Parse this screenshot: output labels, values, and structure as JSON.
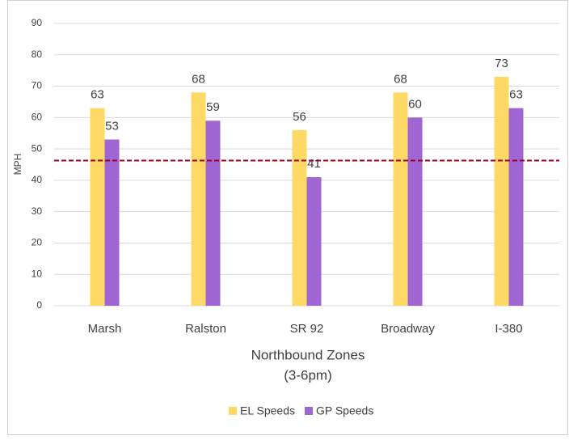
{
  "chart_data": {
    "type": "bar",
    "categories": [
      "Marsh",
      "Ralston",
      "SR 92",
      "Broadway",
      "I-380"
    ],
    "series": [
      {
        "name": "EL Speeds",
        "color": "#ffd966",
        "values": [
          63,
          68,
          56,
          68,
          73
        ]
      },
      {
        "name": "GP Speeds",
        "color": "#a066d3",
        "values": [
          53,
          59,
          41,
          60,
          63
        ]
      }
    ],
    "ylabel": "MPH",
    "xlabel": [
      "Northbound Zones",
      "(3-6pm)"
    ],
    "ylim": [
      0,
      90
    ],
    "yticks": [
      0,
      10,
      20,
      30,
      40,
      50,
      60,
      70,
      80,
      90
    ],
    "grid": true,
    "legend": "bottom",
    "reference_line": {
      "value": 46.3,
      "color": "#a50021"
    }
  }
}
